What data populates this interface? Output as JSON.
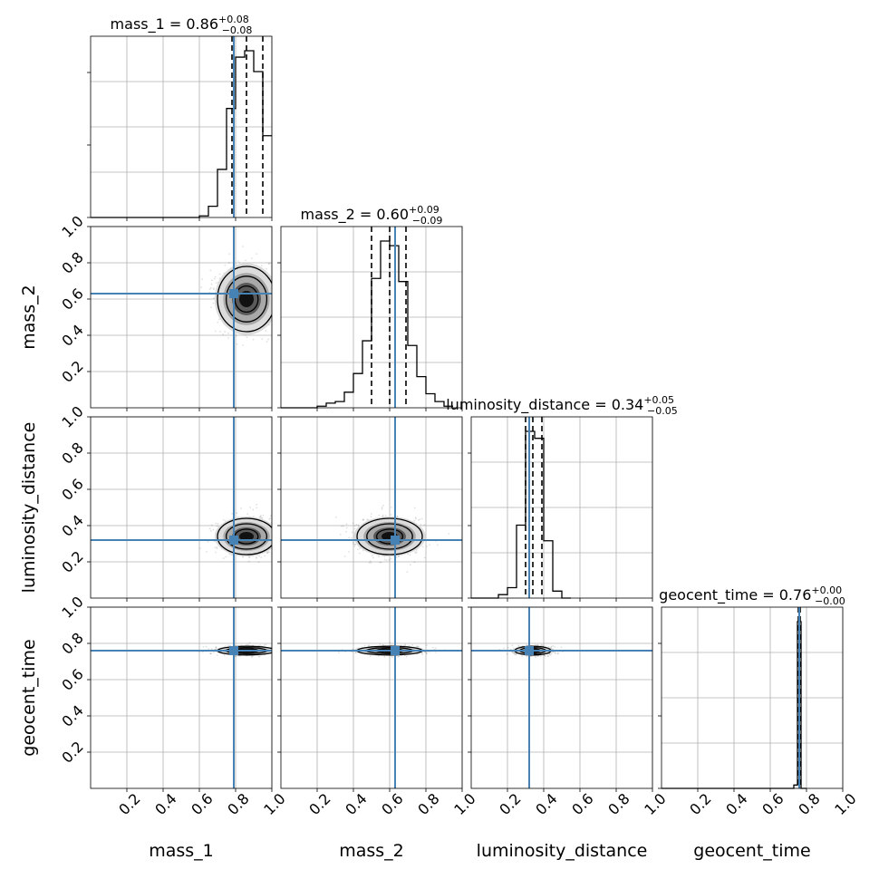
{
  "chart_data": {
    "type": "corner",
    "parameters": [
      "mass_1",
      "mass_2",
      "luminosity_distance",
      "geocent_time"
    ],
    "axis_range": [
      0,
      1
    ],
    "tick_values": [
      0.2,
      0.4,
      0.6,
      0.8,
      1.0
    ],
    "tick_labels": [
      "0.2",
      "0.4",
      "0.6",
      "0.8",
      "1.0"
    ],
    "grid": true,
    "truth_color": "#4682b4",
    "hist_color": "#000000",
    "truths": [
      0.79,
      0.63,
      0.32,
      0.76
    ],
    "titles": [
      {
        "param": "mass_1",
        "prefix": "mass_1 = ",
        "median": "0.86",
        "plus": "+0.08",
        "minus": "−0.08"
      },
      {
        "param": "mass_2",
        "prefix": "mass_2 = ",
        "median": "0.60",
        "plus": "+0.09",
        "minus": "−0.09"
      },
      {
        "param": "luminosity_distance",
        "prefix": "luminosity_distance = ",
        "median": "0.34",
        "plus": "+0.05",
        "minus": "−0.05"
      },
      {
        "param": "geocent_time",
        "prefix": "geocent_time = ",
        "median": "0.76",
        "plus": "+0.00",
        "minus": "−0.00"
      }
    ],
    "quantiles": [
      [
        0.78,
        0.86,
        0.95
      ],
      [
        0.5,
        0.6,
        0.69
      ],
      [
        0.3,
        0.34,
        0.39
      ],
      [
        0.755,
        0.76,
        0.765
      ]
    ],
    "histograms": [
      {
        "edges": [
          0.5,
          0.55,
          0.6,
          0.65,
          0.7,
          0.75,
          0.8,
          0.85,
          0.9,
          0.95,
          1.0
        ],
        "counts": [
          0,
          0,
          0.01,
          0.07,
          0.3,
          0.68,
          1.0,
          1.04,
          0.91,
          0.51
        ]
      },
      {
        "edges": [
          0.15,
          0.2,
          0.25,
          0.3,
          0.35,
          0.4,
          0.45,
          0.5,
          0.55,
          0.6,
          0.65,
          0.7,
          0.75,
          0.8,
          0.85,
          0.9,
          0.95
        ],
        "counts": [
          0,
          0.01,
          0.03,
          0.04,
          0.1,
          0.22,
          0.43,
          0.83,
          1.07,
          1.04,
          0.81,
          0.4,
          0.2,
          0.09,
          0.04,
          0.01
        ]
      },
      {
        "edges": [
          0.1,
          0.15,
          0.2,
          0.25,
          0.3,
          0.35,
          0.4,
          0.45,
          0.5,
          0.55
        ],
        "counts": [
          0,
          0.02,
          0.06,
          0.42,
          0.96,
          0.92,
          0.33,
          0.04,
          0
        ]
      },
      {
        "edges": [
          0.7,
          0.73,
          0.75,
          0.77,
          0.8
        ],
        "counts": [
          0,
          0.02,
          1.0,
          0
        ]
      }
    ],
    "contours": [
      {
        "row": 1,
        "col": 0,
        "cx": 0.86,
        "cy": 0.6,
        "sx": 0.08,
        "sy": 0.09
      },
      {
        "row": 2,
        "col": 0,
        "cx": 0.86,
        "cy": 0.34,
        "sx": 0.08,
        "sy": 0.05
      },
      {
        "row": 2,
        "col": 1,
        "cx": 0.6,
        "cy": 0.34,
        "sx": 0.09,
        "sy": 0.05
      },
      {
        "row": 3,
        "col": 0,
        "cx": 0.86,
        "cy": 0.76,
        "sx": 0.08,
        "sy": 0.012
      },
      {
        "row": 3,
        "col": 1,
        "cx": 0.6,
        "cy": 0.76,
        "sx": 0.09,
        "sy": 0.012
      },
      {
        "row": 3,
        "col": 2,
        "cx": 0.34,
        "cy": 0.76,
        "sx": 0.05,
        "sy": 0.012
      }
    ]
  }
}
